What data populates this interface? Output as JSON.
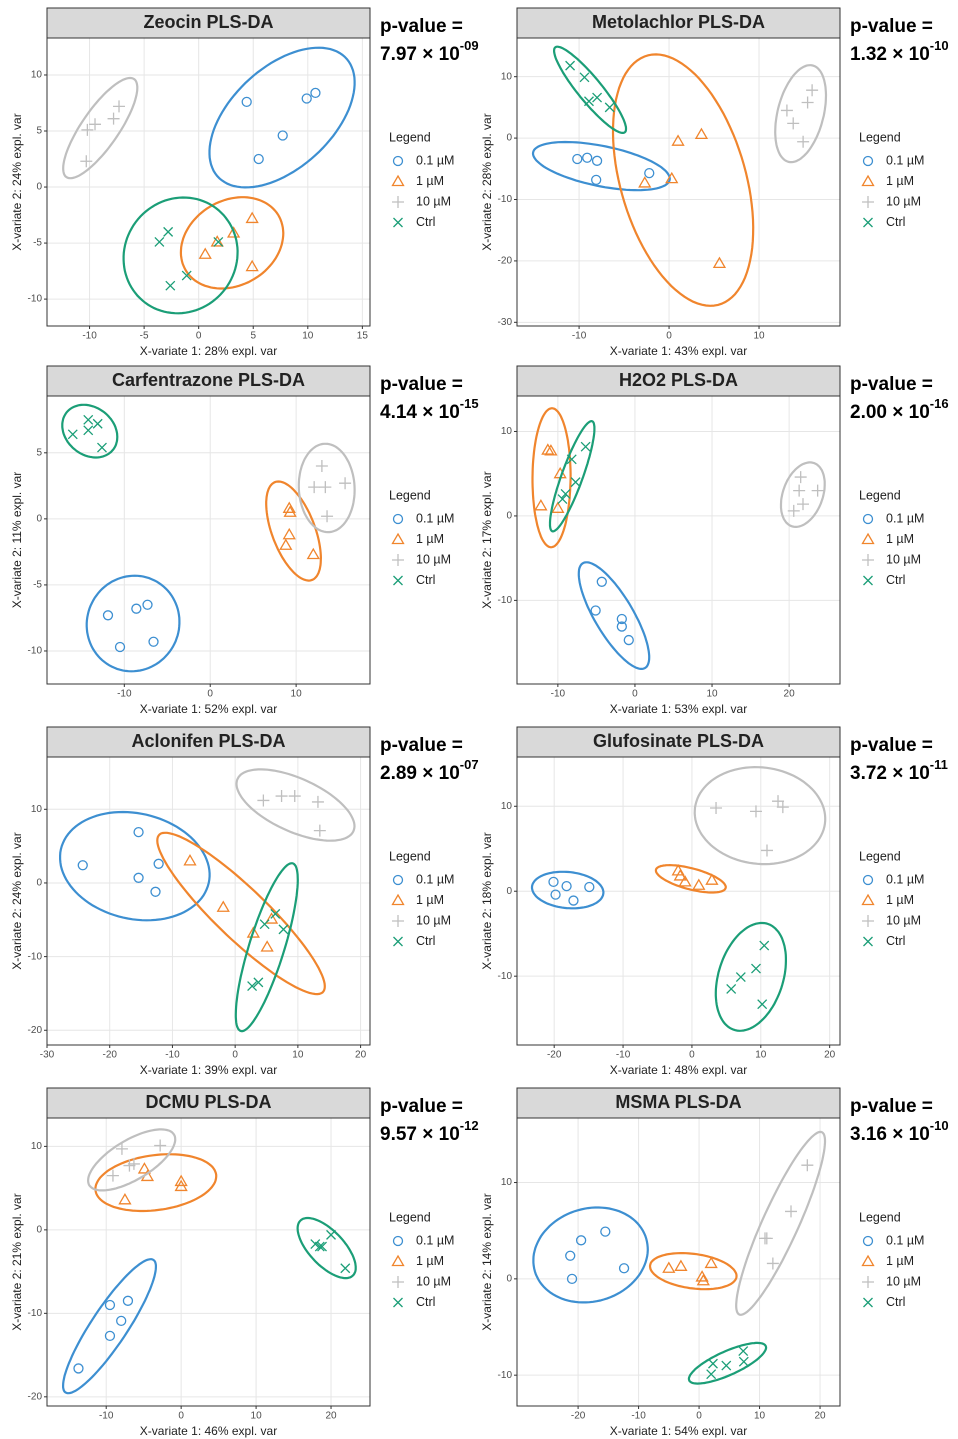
{
  "chart_data": [
    {
      "type": "scatter",
      "title": "Zeocin PLS-DA",
      "p_label": "p-value =",
      "p_value": "7.97 × 10",
      "p_exponent": "-09",
      "xlabel": "X-variate 1: 28% expl. var",
      "ylabel": "X-variate 2: 24% expl. var",
      "legend_title": "Legend",
      "legend": "right",
      "grid": true,
      "ellipses": true,
      "xlim": [
        -13.9,
        15.7
      ],
      "ylim": [
        -12.4,
        13.3
      ],
      "xticks": [
        -10,
        -5,
        0,
        5,
        10,
        15
      ],
      "yticks": [
        -10,
        -5,
        0,
        5,
        10
      ],
      "series": [
        {
          "name": "0.1 µM",
          "color": "#3d8fd1",
          "marker": "circle",
          "x": [
            4.4,
            5.5,
            7.7,
            9.9,
            10.7
          ],
          "y": [
            7.6,
            2.5,
            4.6,
            7.9,
            8.4
          ]
        },
        {
          "name": "1 µM",
          "color": "#f0852d",
          "marker": "triangle",
          "x": [
            0.6,
            1.7,
            3.2,
            4.9,
            4.9
          ],
          "y": [
            -6.0,
            -4.9,
            -4.1,
            -2.8,
            -7.1
          ]
        },
        {
          "name": "10 µM",
          "color": "#bfbfbf",
          "marker": "plus",
          "x": [
            -10.3,
            -10.2,
            -9.5,
            -7.8,
            -7.3
          ],
          "y": [
            2.3,
            5.1,
            5.6,
            6.1,
            7.2
          ]
        },
        {
          "name": "Ctrl",
          "color": "#1b9e77",
          "marker": "x",
          "x": [
            -3.6,
            -2.8,
            -2.6,
            -1.1,
            1.8
          ],
          "y": [
            -4.9,
            -4.0,
            -8.8,
            -7.9,
            -4.9
          ]
        }
      ]
    },
    {
      "type": "scatter",
      "title": "Metolachlor PLS-DA",
      "p_label": "p-value =",
      "p_value": "1.32 × 10",
      "p_exponent": "-10",
      "xlabel": "X-variate 1: 43% expl. var",
      "ylabel": "X-variate 2: 28% expl. var",
      "legend_title": "Legend",
      "legend": "right",
      "grid": true,
      "ellipses": true,
      "xlim": [
        -16.9,
        19.0
      ],
      "ylim": [
        -30.6,
        16.3
      ],
      "xticks": [
        -10,
        0,
        10
      ],
      "yticks": [
        -30,
        -20,
        -10,
        0,
        10
      ],
      "series": [
        {
          "name": "0.1 µM",
          "color": "#3d8fd1",
          "marker": "circle",
          "x": [
            -10.2,
            -9.1,
            -8.0,
            -8.1,
            -2.2
          ],
          "y": [
            -3.4,
            -3.2,
            -3.7,
            -6.8,
            -5.7
          ]
        },
        {
          "name": "1 µM",
          "color": "#f0852d",
          "marker": "triangle",
          "x": [
            -2.7,
            1.0,
            0.3,
            3.6,
            5.6
          ],
          "y": [
            -7.3,
            -0.5,
            -6.6,
            0.6,
            -20.4
          ]
        },
        {
          "name": "10 µM",
          "color": "#bfbfbf",
          "marker": "plus",
          "x": [
            13.1,
            13.8,
            14.9,
            15.4,
            15.9
          ],
          "y": [
            4.5,
            2.4,
            -0.6,
            5.8,
            7.8
          ]
        },
        {
          "name": "Ctrl",
          "color": "#1b9e77",
          "marker": "x",
          "x": [
            -11.0,
            -9.4,
            -8.9,
            -8.0,
            -6.6
          ],
          "y": [
            11.8,
            9.9,
            6.0,
            6.6,
            5.0
          ]
        }
      ]
    },
    {
      "type": "scatter",
      "title": "Carfentrazone PLS-DA",
      "p_label": "p-value =",
      "p_value": "4.14 × 10",
      "p_exponent": "-15",
      "xlabel": "X-variate 1: 52% expl. var",
      "ylabel": "X-variate 2: 11% expl. var",
      "legend_title": "Legend",
      "legend": "right",
      "grid": true,
      "ellipses": true,
      "xlim": [
        -19.0,
        18.6
      ],
      "ylim": [
        -12.5,
        9.3
      ],
      "xticks": [
        -10,
        0,
        10
      ],
      "yticks": [
        -10,
        -5,
        0,
        5
      ],
      "series": [
        {
          "name": "0.1 µM",
          "color": "#3d8fd1",
          "marker": "circle",
          "x": [
            -11.9,
            -10.5,
            -8.6,
            -7.3,
            -6.6
          ],
          "y": [
            -7.3,
            -9.7,
            -6.8,
            -6.5,
            -9.3
          ]
        },
        {
          "name": "1 µM",
          "color": "#f0852d",
          "marker": "triangle",
          "x": [
            9.2,
            9.3,
            9.2,
            8.8,
            12.0
          ],
          "y": [
            0.8,
            0.5,
            -1.2,
            -2.0,
            -2.7
          ]
        },
        {
          "name": "10 µM",
          "color": "#bfbfbf",
          "marker": "plus",
          "x": [
            12.1,
            13.0,
            13.4,
            13.6,
            15.7
          ],
          "y": [
            2.4,
            4.0,
            2.4,
            0.2,
            2.7
          ]
        },
        {
          "name": "Ctrl",
          "color": "#1b9e77",
          "marker": "x",
          "x": [
            -16.0,
            -14.2,
            -14.2,
            -13.1,
            -12.6
          ],
          "y": [
            6.4,
            7.5,
            6.7,
            7.2,
            5.4
          ]
        }
      ]
    },
    {
      "type": "scatter",
      "title": "H2O2 PLS-DA",
      "p_label": "p-value =",
      "p_value": "2.00 × 10",
      "p_exponent": "-16",
      "xlabel": "X-variate 1: 53% expl. var",
      "ylabel": "X-variate 2: 17% expl. var",
      "legend_title": "Legend",
      "legend": "right",
      "grid": true,
      "ellipses": true,
      "xlim": [
        -15.3,
        26.6
      ],
      "ylim": [
        -19.9,
        14.2
      ],
      "xticks": [
        -10,
        0,
        10,
        20
      ],
      "yticks": [
        -10,
        0,
        10
      ],
      "series": [
        {
          "name": "0.1 µM",
          "color": "#3d8fd1",
          "marker": "circle",
          "x": [
            -4.3,
            -5.1,
            -1.7,
            -1.7,
            -0.8
          ],
          "y": [
            -7.8,
            -11.2,
            -12.2,
            -13.1,
            -14.7
          ]
        },
        {
          "name": "1 µM",
          "color": "#f0852d",
          "marker": "triangle",
          "x": [
            -12.2,
            -11.3,
            -10.9,
            -10.0,
            -9.7
          ],
          "y": [
            1.2,
            7.8,
            7.7,
            0.9,
            5.0
          ]
        },
        {
          "name": "10 µM",
          "color": "#bfbfbf",
          "marker": "plus",
          "x": [
            20.6,
            21.3,
            21.5,
            21.8,
            23.7
          ],
          "y": [
            0.6,
            3.0,
            4.6,
            1.4,
            3.0
          ]
        },
        {
          "name": "Ctrl",
          "color": "#1b9e77",
          "marker": "x",
          "x": [
            -9.4,
            -8.2,
            -7.7,
            -6.4,
            -9.0
          ],
          "y": [
            2.0,
            6.7,
            4.0,
            8.2,
            2.6
          ]
        }
      ]
    },
    {
      "type": "scatter",
      "title": "Aclonifen PLS-DA",
      "p_label": "p-value =",
      "p_value": "2.89 × 10",
      "p_exponent": "-07",
      "xlabel": "X-variate 1: 39% expl. var",
      "ylabel": "X-variate 2: 24% expl. var",
      "legend_title": "Legend",
      "legend": "right",
      "grid": true,
      "ellipses": true,
      "xlim": [
        -30.0,
        21.5
      ],
      "ylim": [
        -22.0,
        17.1
      ],
      "xticks": [
        -30,
        -20,
        -10,
        0,
        10,
        20
      ],
      "yticks": [
        -20,
        -10,
        0,
        10
      ],
      "series": [
        {
          "name": "0.1 µM",
          "color": "#3d8fd1",
          "marker": "circle",
          "x": [
            -24.3,
            -15.4,
            -15.4,
            -12.2,
            -12.7
          ],
          "y": [
            2.4,
            6.9,
            0.7,
            2.6,
            -1.2
          ]
        },
        {
          "name": "1 µM",
          "color": "#f0852d",
          "marker": "triangle",
          "x": [
            -7.2,
            -1.9,
            2.9,
            5.1,
            5.8
          ],
          "y": [
            3.0,
            -3.3,
            -6.8,
            -8.7,
            -4.9
          ]
        },
        {
          "name": "10 µM",
          "color": "#bfbfbf",
          "marker": "plus",
          "x": [
            4.5,
            7.4,
            9.5,
            13.2,
            13.5
          ],
          "y": [
            11.2,
            11.8,
            11.8,
            11.0,
            7.1
          ]
        },
        {
          "name": "Ctrl",
          "color": "#1b9e77",
          "marker": "x",
          "x": [
            2.7,
            3.7,
            4.7,
            6.4,
            7.7
          ],
          "y": [
            -14.0,
            -13.5,
            -5.6,
            -4.2,
            -6.3
          ]
        }
      ]
    },
    {
      "type": "scatter",
      "title": "Glufosinate PLS-DA",
      "p_label": "p-value =",
      "p_value": "3.72 × 10",
      "p_exponent": "-11",
      "xlabel": "X-variate 1: 48% expl. var",
      "ylabel": "X-variate 2: 18% expl. var",
      "legend_title": "Legend",
      "legend": "right",
      "grid": true,
      "ellipses": true,
      "xlim": [
        -25.4,
        21.5
      ],
      "ylim": [
        -18.1,
        15.8
      ],
      "xticks": [
        -20,
        -10,
        0,
        10,
        20
      ],
      "yticks": [
        -10,
        0,
        10
      ],
      "series": [
        {
          "name": "0.1 µM",
          "color": "#3d8fd1",
          "marker": "circle",
          "x": [
            -20.1,
            -19.8,
            -18.2,
            -17.2,
            -14.9
          ],
          "y": [
            1.1,
            -0.4,
            0.6,
            -1.1,
            0.5
          ]
        },
        {
          "name": "1 µM",
          "color": "#f0852d",
          "marker": "triangle",
          "x": [
            -2.0,
            -1.7,
            -1.0,
            1.0,
            2.9
          ],
          "y": [
            2.4,
            1.8,
            1.1,
            0.7,
            1.3
          ]
        },
        {
          "name": "10 µM",
          "color": "#bfbfbf",
          "marker": "plus",
          "x": [
            3.5,
            9.3,
            12.5,
            13.2,
            10.9
          ],
          "y": [
            9.8,
            9.4,
            10.6,
            9.9,
            4.8
          ]
        },
        {
          "name": "Ctrl",
          "color": "#1b9e77",
          "marker": "x",
          "x": [
            5.7,
            7.1,
            9.3,
            10.5,
            10.2
          ],
          "y": [
            -11.5,
            -10.1,
            -9.1,
            -6.4,
            -13.3
          ]
        }
      ]
    },
    {
      "type": "scatter",
      "title": "DCMU PLS-DA",
      "p_label": "p-value =",
      "p_value": "9.57 × 10",
      "p_exponent": "-12",
      "xlabel": "X-variate 1: 46% expl. var",
      "ylabel": "X-variate 2: 21% expl. var",
      "legend_title": "Legend",
      "legend": "right",
      "grid": true,
      "ellipses": true,
      "xlim": [
        -17.9,
        25.2
      ],
      "ylim": [
        -21.1,
        13.4
      ],
      "xticks": [
        -10,
        0,
        10,
        20
      ],
      "yticks": [
        -20,
        -10,
        0,
        10
      ],
      "series": [
        {
          "name": "0.1 µM",
          "color": "#3d8fd1",
          "marker": "circle",
          "x": [
            -13.7,
            -9.5,
            -9.5,
            -8.0,
            -7.1
          ],
          "y": [
            -16.6,
            -9.0,
            -12.7,
            -10.9,
            -8.5
          ]
        },
        {
          "name": "1 µM",
          "color": "#f0852d",
          "marker": "triangle",
          "x": [
            -7.5,
            -4.9,
            -4.5,
            0,
            0
          ],
          "y": [
            3.6,
            7.3,
            6.4,
            5.8,
            5.2
          ]
        },
        {
          "name": "10 µM",
          "color": "#bfbfbf",
          "marker": "plus",
          "x": [
            -9.1,
            -7.9,
            -6.9,
            -6.3,
            -2.8
          ],
          "y": [
            6.5,
            9.7,
            7.7,
            7.9,
            10.1
          ]
        },
        {
          "name": "Ctrl",
          "color": "#1b9e77",
          "marker": "x",
          "x": [
            17.9,
            18.5,
            18.8,
            20.0,
            21.9
          ],
          "y": [
            -1.7,
            -2.0,
            -2.0,
            -0.6,
            -4.6
          ]
        }
      ]
    },
    {
      "type": "scatter",
      "title": "MSMA PLS-DA",
      "p_label": "p-value =",
      "p_value": "3.16 × 10",
      "p_exponent": "-10",
      "xlabel": "X-variate 1: 54% expl. var",
      "ylabel": "X-variate 2: 14% expl. var",
      "legend_title": "Legend",
      "legend": "right",
      "grid": true,
      "ellipses": true,
      "xlim": [
        -30.1,
        23.3
      ],
      "ylim": [
        -13.2,
        16.7
      ],
      "xticks": [
        -20,
        -10,
        0,
        10,
        20
      ],
      "yticks": [
        -10,
        0,
        10
      ],
      "series": [
        {
          "name": "0.1 µM",
          "color": "#3d8fd1",
          "marker": "circle",
          "x": [
            -21.3,
            -21.0,
            -19.5,
            -15.5,
            -12.4
          ],
          "y": [
            2.4,
            0,
            4.0,
            4.9,
            1.1
          ]
        },
        {
          "name": "1 µM",
          "color": "#f0852d",
          "marker": "triangle",
          "x": [
            -5.0,
            -3.0,
            0.5,
            0.7,
            2.0
          ],
          "y": [
            1.1,
            1.3,
            0.2,
            -0.2,
            1.6
          ]
        },
        {
          "name": "10 µM",
          "color": "#bfbfbf",
          "marker": "plus",
          "x": [
            10.9,
            11.2,
            12.2,
            15.2,
            17.9
          ],
          "y": [
            4.2,
            4.2,
            1.6,
            7.0,
            11.8
          ]
        },
        {
          "name": "Ctrl",
          "color": "#1b9e77",
          "marker": "x",
          "x": [
            2.0,
            2.3,
            4.5,
            7.3,
            7.4
          ],
          "y": [
            -9.9,
            -8.8,
            -9.0,
            -7.5,
            -8.6
          ]
        }
      ]
    }
  ]
}
